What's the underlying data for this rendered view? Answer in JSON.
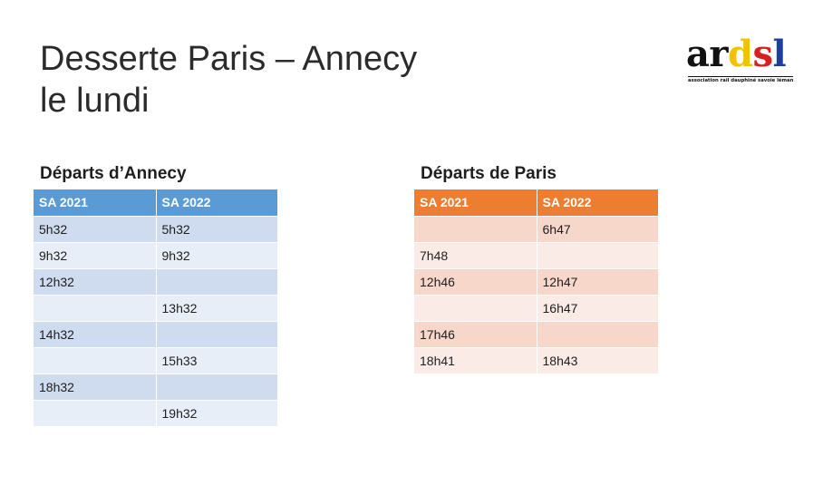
{
  "title": {
    "line1": "Desserte Paris – Annecy",
    "line2": "le lundi"
  },
  "logo": {
    "letters": [
      "a",
      "r",
      "d",
      "s",
      "l"
    ],
    "tagline": "association rail dauphiné savoie léman",
    "colors": {
      "a": "#111111",
      "r": "#111111",
      "d": "#f2c200",
      "s": "#d6201f",
      "l": "#1b3f9a"
    }
  },
  "departures_annecy": {
    "heading": "Départs d’Annecy",
    "header_color": "#5b9bd5",
    "columns": [
      "SA 2021",
      "SA 2022"
    ],
    "rows": [
      [
        "5h32",
        "5h32"
      ],
      [
        "9h32",
        "9h32"
      ],
      [
        "12h32",
        ""
      ],
      [
        "",
        "13h32"
      ],
      [
        "14h32",
        ""
      ],
      [
        "",
        "15h33"
      ],
      [
        "18h32",
        ""
      ],
      [
        "",
        "19h32"
      ]
    ]
  },
  "departures_paris": {
    "heading": "Départs de Paris",
    "header_color": "#ed7d31",
    "columns": [
      "SA 2021",
      "SA 2022"
    ],
    "rows": [
      [
        "",
        "6h47"
      ],
      [
        "7h48",
        ""
      ],
      [
        "12h46",
        "12h47"
      ],
      [
        "",
        "16h47"
      ],
      [
        "17h46",
        ""
      ],
      [
        "18h41",
        "18h43"
      ]
    ]
  }
}
